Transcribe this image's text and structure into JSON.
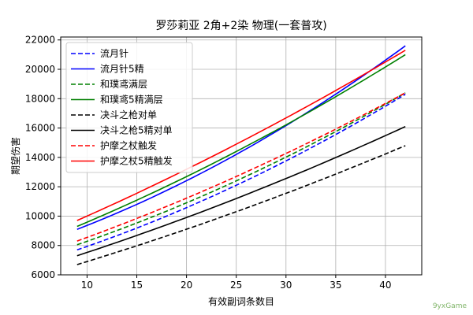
{
  "chart_data": {
    "type": "line",
    "title": "罗莎莉亚 2角+2染 物理(一套普攻)",
    "xlabel": "有效副词条数目",
    "ylabel": "期望伤害",
    "xlim": [
      7.35,
      43.65
    ],
    "ylim": [
      6000,
      22200
    ],
    "xticks": [
      10,
      15,
      20,
      25,
      30,
      35,
      40
    ],
    "yticks": [
      6000,
      8000,
      10000,
      12000,
      14000,
      16000,
      18000,
      20000,
      22000
    ],
    "grid": true,
    "legend_position": "top-left",
    "x": [
      9,
      42
    ],
    "series": [
      {
        "name": "流月针",
        "color": "#0000ff",
        "dash": "dashed",
        "values": [
          7700,
          18300
        ],
        "mid": [
          25,
          12100
        ]
      },
      {
        "name": "流月针5精",
        "color": "#0000ff",
        "dash": "solid",
        "values": [
          9100,
          21600
        ],
        "mid": [
          25,
          14200
        ]
      },
      {
        "name": "和璞鸢满层",
        "color": "#008000",
        "dash": "dashed",
        "values": [
          8050,
          18400
        ],
        "mid": [
          25,
          12400
        ]
      },
      {
        "name": "和璞鸢5精满层",
        "color": "#008000",
        "dash": "solid",
        "values": [
          9300,
          21000
        ],
        "mid": [
          25,
          14400
        ]
      },
      {
        "name": "决斗之枪对单",
        "color": "#000000",
        "dash": "dashed",
        "values": [
          6700,
          14800
        ],
        "mid": [
          25,
          10300
        ]
      },
      {
        "name": "决斗之枪5精对单",
        "color": "#000000",
        "dash": "solid",
        "values": [
          7300,
          16100
        ],
        "mid": [
          25,
          11200
        ]
      },
      {
        "name": "护摩之杖触发",
        "color": "#ff0000",
        "dash": "dashed",
        "values": [
          8300,
          18400
        ],
        "mid": [
          25,
          12700
        ]
      },
      {
        "name": "护摩之杖5精触发",
        "color": "#ff0000",
        "dash": "solid",
        "values": [
          9700,
          21300
        ],
        "mid": [
          25,
          14900
        ]
      }
    ]
  },
  "watermark": "9yxGame"
}
